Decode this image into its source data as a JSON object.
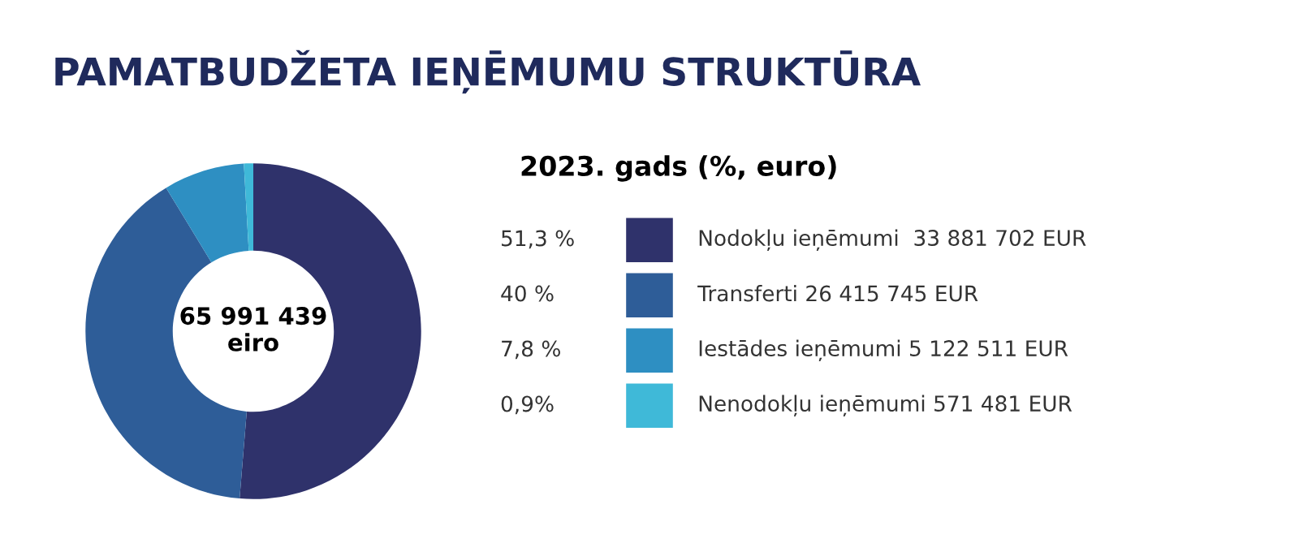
{
  "chart_data": {
    "type": "donut",
    "title": "PAMATBUDŽETA IEŅĒMUMU STRUKTŪRA",
    "legend_title": "2023. gads (%, euro)",
    "categories": [
      "Nodokļu ieņēmumi  33 881 702 EUR",
      "Transferti 26 415 745 EUR",
      "Iestādes ieņēmumi 5 122 511 EUR",
      "Nenodokļu ieņēmumi 571 481 EUR"
    ],
    "values": [
      51.3,
      40,
      7.8,
      0.9
    ],
    "value_labels": [
      "51,3 %",
      "40 %",
      "7,8 %",
      "0,9%"
    ],
    "colors": [
      "#2f326b",
      "#2e5d98",
      "#2e8fc2",
      "#3fb9d8"
    ],
    "annotations": [
      "65 991 439\neiro"
    ],
    "legend": "right"
  }
}
